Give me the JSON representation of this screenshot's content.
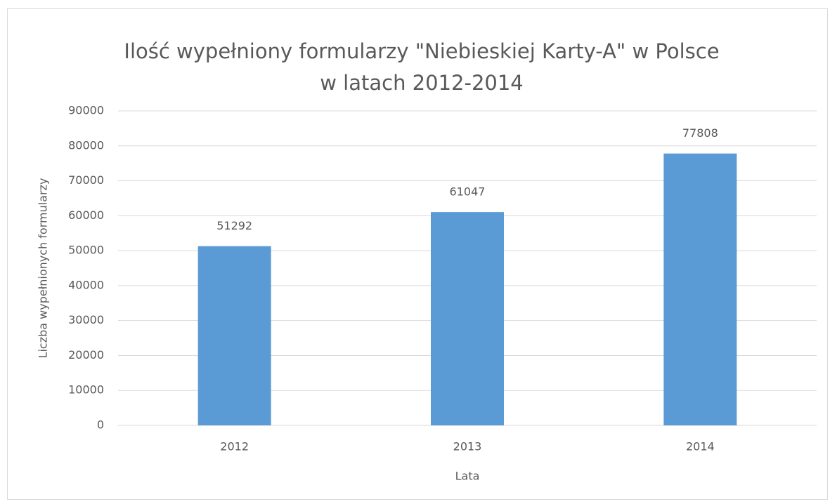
{
  "chart_data": {
    "type": "bar",
    "title": [
      "Ilość wypełniony formularzy \"Niebieskiej Karty-A\" w Polsce",
      "w latach 2012-2014"
    ],
    "x_label": "Lata",
    "y_label": "Liczba wypełnionych formularzy",
    "categories": [
      "2012",
      "2013",
      "2014"
    ],
    "values": [
      51292,
      61047,
      77808
    ],
    "color": "#5b9bd5",
    "ylim": [
      0,
      90000
    ],
    "yticks": [
      0,
      10000,
      20000,
      30000,
      40000,
      50000,
      60000,
      70000,
      80000,
      90000
    ],
    "grid": true
  }
}
